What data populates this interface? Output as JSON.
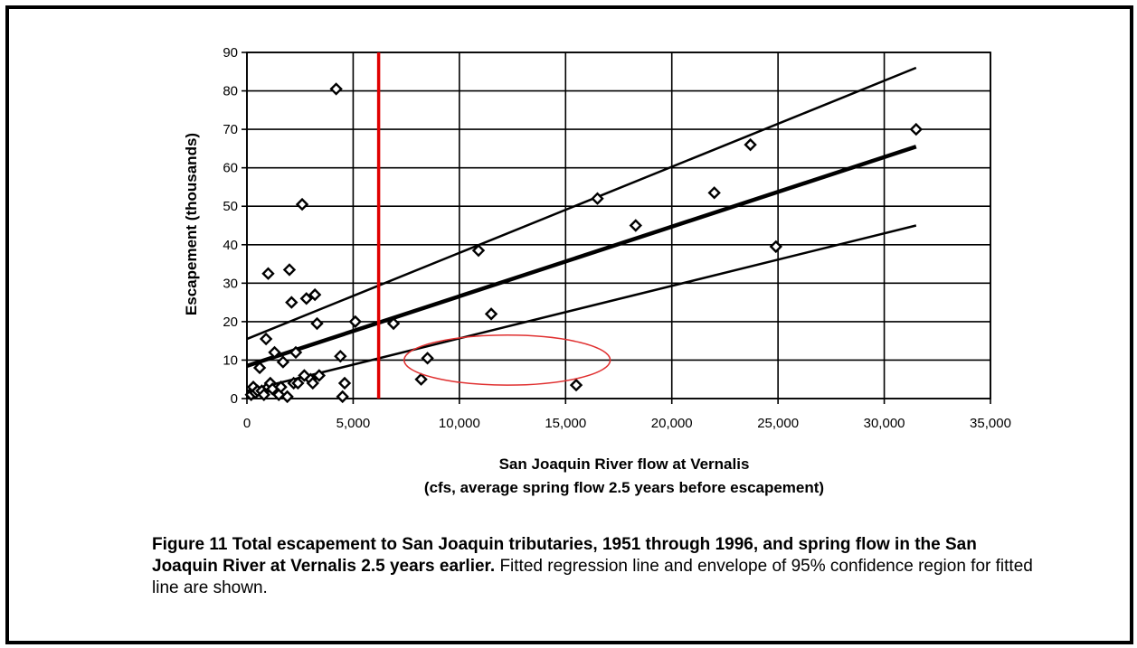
{
  "chart_data": {
    "type": "scatter",
    "title": "",
    "xlabel": "San Joaquin River flow at Vernalis",
    "xlabel_line2": "(cfs, average spring flow 2.5 years before escapement)",
    "ylabel": "Escapement (thousands)",
    "xlim": [
      0,
      35000
    ],
    "ylim": [
      0,
      90
    ],
    "xticks": [
      0,
      5000,
      10000,
      15000,
      20000,
      25000,
      30000,
      35000
    ],
    "xtick_labels": [
      "0",
      "5,000",
      "10,000",
      "15,000",
      "20,000",
      "25,000",
      "30,000",
      "35,000"
    ],
    "yticks": [
      0,
      10,
      20,
      30,
      40,
      50,
      60,
      70,
      80,
      90
    ],
    "ytick_labels": [
      "0",
      "10",
      "20",
      "30",
      "40",
      "50",
      "60",
      "70",
      "80",
      "90"
    ],
    "grid": true,
    "marker": "diamond",
    "points": [
      {
        "x": 200,
        "y": 1
      },
      {
        "x": 300,
        "y": 3
      },
      {
        "x": 400,
        "y": 1.5
      },
      {
        "x": 500,
        "y": 2
      },
      {
        "x": 600,
        "y": 8
      },
      {
        "x": 700,
        "y": 2
      },
      {
        "x": 800,
        "y": 1
      },
      {
        "x": 900,
        "y": 15.5
      },
      {
        "x": 1000,
        "y": 3
      },
      {
        "x": 1000,
        "y": 32.5
      },
      {
        "x": 1100,
        "y": 4
      },
      {
        "x": 1200,
        "y": 2.5
      },
      {
        "x": 1300,
        "y": 12
      },
      {
        "x": 1500,
        "y": 1
      },
      {
        "x": 1600,
        "y": 3
      },
      {
        "x": 1700,
        "y": 9.5
      },
      {
        "x": 1900,
        "y": 0.5
      },
      {
        "x": 2000,
        "y": 33.5
      },
      {
        "x": 2100,
        "y": 25
      },
      {
        "x": 2200,
        "y": 4
      },
      {
        "x": 2300,
        "y": 12
      },
      {
        "x": 2400,
        "y": 4
      },
      {
        "x": 2600,
        "y": 50.5
      },
      {
        "x": 2700,
        "y": 6
      },
      {
        "x": 2800,
        "y": 26
      },
      {
        "x": 3000,
        "y": 5
      },
      {
        "x": 3100,
        "y": 4
      },
      {
        "x": 3200,
        "y": 27
      },
      {
        "x": 3300,
        "y": 19.5
      },
      {
        "x": 3400,
        "y": 6
      },
      {
        "x": 4200,
        "y": 80.5
      },
      {
        "x": 4400,
        "y": 11
      },
      {
        "x": 4500,
        "y": 0.5
      },
      {
        "x": 4600,
        "y": 4
      },
      {
        "x": 5100,
        "y": 20
      },
      {
        "x": 6900,
        "y": 19.5
      },
      {
        "x": 8200,
        "y": 5
      },
      {
        "x": 8500,
        "y": 10.5
      },
      {
        "x": 10900,
        "y": 38.5
      },
      {
        "x": 11500,
        "y": 22
      },
      {
        "x": 15500,
        "y": 3.5
      },
      {
        "x": 16500,
        "y": 52
      },
      {
        "x": 18300,
        "y": 45
      },
      {
        "x": 22000,
        "y": 53.5
      },
      {
        "x": 23700,
        "y": 66
      },
      {
        "x": 24900,
        "y": 39.5
      },
      {
        "x": 31500,
        "y": 70
      }
    ],
    "regression_line": {
      "x": [
        0,
        31500
      ],
      "y": [
        8.5,
        65.5
      ]
    },
    "upper_confidence": {
      "x": [
        0,
        31500
      ],
      "y": [
        15.5,
        86
      ]
    },
    "lower_confidence": {
      "x": [
        0,
        31500
      ],
      "y": [
        2,
        45
      ]
    },
    "reference_line": {
      "x": 6200,
      "color": "#e00000"
    },
    "highlight_ellipse": {
      "cx": 12250,
      "cy": 10,
      "rx": 4850,
      "ry": 6.5,
      "color": "#e03030"
    }
  },
  "caption": {
    "bold": "Figure 11  Total escapement to San Joaquin tributaries, 1951 through 1996, and spring flow in the San Joaquin River at Vernalis 2.5 years earlier.",
    "normal": " Fitted regression line and envelope of 95% confidence region for fitted line are shown."
  }
}
